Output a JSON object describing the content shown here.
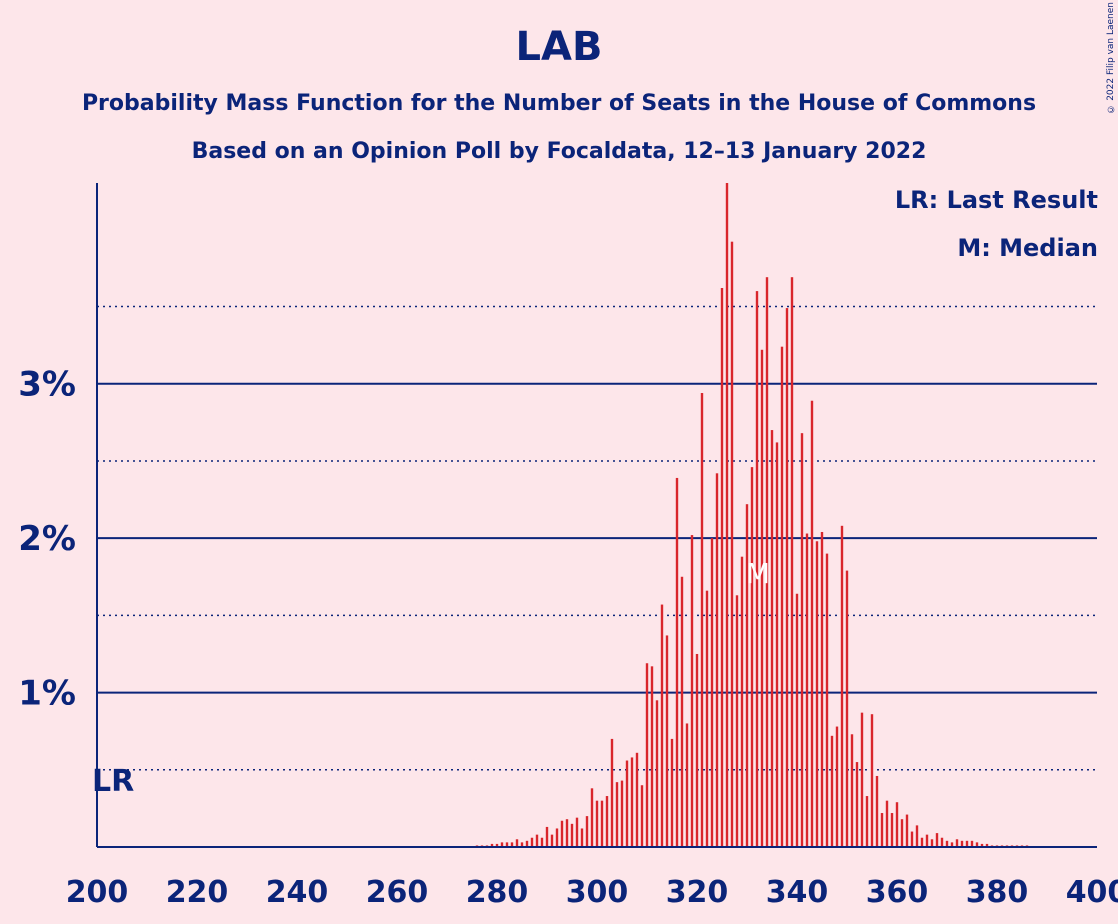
{
  "title": "LAB",
  "subtitle_1": "Probability Mass Function for the Number of Seats in the House of Commons",
  "subtitle_2": "Based on an Opinion Poll by Focaldata, 12–13 January 2022",
  "copyright": "© 2022 Filip van Laenen",
  "legend": {
    "last_result": "LR: Last Result",
    "median": "M: Median"
  },
  "colors": {
    "background": "#fde6ea",
    "axis": "#0b2479",
    "bar": "#d9262c"
  },
  "chart_data": {
    "type": "bar",
    "xlim": [
      200,
      400
    ],
    "ylim": [
      0,
      4.3
    ],
    "x_ticks": [
      200,
      220,
      240,
      260,
      280,
      300,
      320,
      340,
      360,
      380,
      400
    ],
    "y_ticks": [
      "1%",
      "2%",
      "3%"
    ],
    "y_tick_values": [
      1,
      2,
      3
    ],
    "minor_grid": [
      0.5,
      1.5,
      2.5,
      3.5
    ],
    "last_result": {
      "label": "LR",
      "seats": 202
    },
    "median": {
      "label": "M",
      "seats": 332
    },
    "x": [
      276,
      277,
      278,
      279,
      280,
      281,
      282,
      283,
      284,
      285,
      286,
      287,
      288,
      289,
      290,
      291,
      292,
      293,
      294,
      295,
      296,
      297,
      298,
      299,
      300,
      301,
      302,
      303,
      304,
      305,
      306,
      307,
      308,
      309,
      310,
      311,
      312,
      313,
      314,
      315,
      316,
      317,
      318,
      319,
      320,
      321,
      322,
      323,
      324,
      325,
      326,
      327,
      328,
      329,
      330,
      331,
      332,
      333,
      334,
      335,
      336,
      337,
      338,
      339,
      340,
      341,
      342,
      343,
      344,
      345,
      346,
      347,
      348,
      349,
      350,
      351,
      352,
      353,
      354,
      355,
      356,
      357,
      358,
      359,
      360,
      361,
      362,
      363,
      364,
      365,
      366,
      367,
      368,
      369,
      370,
      371,
      372,
      373,
      374,
      375,
      376,
      377,
      378,
      379,
      380,
      381,
      382,
      383,
      384,
      385,
      386
    ],
    "values": [
      0.01,
      0.01,
      0.01,
      0.02,
      0.02,
      0.03,
      0.03,
      0.03,
      0.05,
      0.03,
      0.04,
      0.06,
      0.08,
      0.06,
      0.13,
      0.08,
      0.12,
      0.17,
      0.18,
      0.15,
      0.19,
      0.12,
      0.2,
      0.38,
      0.3,
      0.3,
      0.33,
      0.7,
      0.42,
      0.43,
      0.56,
      0.58,
      0.61,
      0.4,
      1.19,
      1.17,
      0.95,
      1.57,
      1.37,
      0.7,
      2.39,
      1.75,
      0.8,
      2.02,
      1.25,
      2.94,
      1.66,
      2.0,
      2.42,
      3.62,
      4.3,
      3.92,
      1.63,
      1.88,
      2.22,
      2.46,
      3.6,
      3.22,
      3.69,
      2.7,
      2.62,
      3.24,
      3.49,
      3.69,
      1.64,
      2.68,
      2.03,
      2.89,
      1.98,
      2.04,
      1.9,
      0.72,
      0.78,
      2.08,
      1.79,
      0.73,
      0.55,
      0.87,
      0.33,
      0.86,
      0.46,
      0.22,
      0.3,
      0.22,
      0.29,
      0.18,
      0.21,
      0.1,
      0.14,
      0.06,
      0.08,
      0.05,
      0.09,
      0.06,
      0.04,
      0.03,
      0.05,
      0.04,
      0.04,
      0.04,
      0.03,
      0.02,
      0.02,
      0.01,
      0.01,
      0.01,
      0.01,
      0.01,
      0.01,
      0.01,
      0.01
    ]
  }
}
